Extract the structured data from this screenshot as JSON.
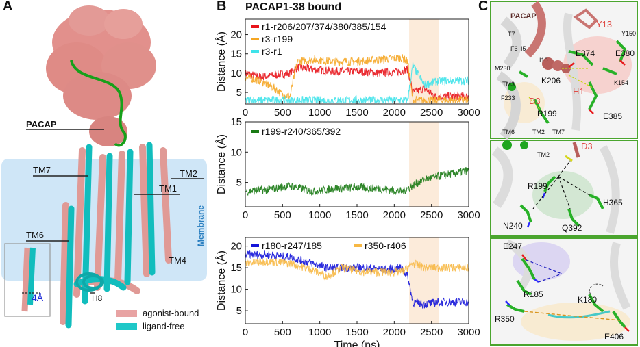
{
  "panel_letters": {
    "a": "A",
    "b": "B",
    "c": "C"
  },
  "panel_a": {
    "peptide_label": "PACAP",
    "membrane_label": "Membrane",
    "helix_labels": {
      "tm7": "TM7",
      "tm2": "TM2",
      "tm1": "TM1",
      "tm6": "TM6",
      "tm4": "TM4",
      "h8": "H8"
    },
    "shift_label": "4Å",
    "legend": [
      {
        "label": "agonist-bound",
        "color": "#e8a3a3"
      },
      {
        "label": "ligand-free",
        "color": "#1fc8c8"
      }
    ]
  },
  "panel_b_title": "PACAP1-38 bound",
  "chart_data": [
    {
      "type": "line",
      "title": "PACAP1-38 bound",
      "xlabel": "",
      "ylabel": "Distance (Å)",
      "xlim": [
        0,
        3000
      ],
      "ylim": [
        2,
        24
      ],
      "xticks": [
        "0",
        "500",
        "1000",
        "1500",
        "2000",
        "2500",
        "3000"
      ],
      "yticks": [
        "5",
        "10",
        "15",
        "20"
      ],
      "highlight_span": [
        2200,
        2600
      ],
      "series": [
        {
          "name": "r1-r206/207/374/380/385/154",
          "color": "#e8141b",
          "x": [
            0,
            200,
            400,
            600,
            700,
            900,
            1200,
            1500,
            1800,
            2100,
            2180,
            2250,
            2400,
            2550,
            2700,
            3000
          ],
          "values": [
            10,
            9,
            9.5,
            10,
            11.5,
            11,
            10.5,
            10.5,
            10,
            10.5,
            11,
            5,
            6,
            4,
            4,
            4
          ]
        },
        {
          "name": "r3-r199",
          "color": "#f5a623",
          "x": [
            0,
            200,
            400,
            500,
            600,
            700,
            900,
            1200,
            1500,
            1800,
            2100,
            2180,
            2250,
            2400,
            2600,
            3000
          ],
          "values": [
            9,
            8,
            6,
            4.5,
            4,
            13,
            13.5,
            13,
            13,
            13.5,
            14,
            13,
            3,
            3,
            3,
            3
          ]
        },
        {
          "name": "r3-r1",
          "color": "#3fe3ea",
          "x": [
            0,
            500,
            1000,
            1500,
            2000,
            2180,
            2250,
            2400,
            2600,
            3000
          ],
          "values": [
            3,
            3,
            3,
            3,
            3,
            3,
            12,
            7,
            8,
            8
          ]
        }
      ]
    },
    {
      "type": "line",
      "xlabel": "",
      "ylabel": "Distance (Å)",
      "xlim": [
        0,
        3000
      ],
      "ylim": [
        1,
        15
      ],
      "xticks": [
        "0",
        "500",
        "1000",
        "1500",
        "2000",
        "2500",
        "3000"
      ],
      "yticks": [
        "5",
        "10",
        "15"
      ],
      "highlight_span": [
        2200,
        2600
      ],
      "series": [
        {
          "name": "r199-r240/365/392",
          "color": "#1a7a14",
          "x": [
            0,
            300,
            600,
            900,
            1200,
            1500,
            1800,
            2100,
            2250,
            2400,
            2600,
            2800,
            3000
          ],
          "values": [
            3.5,
            3.8,
            4.5,
            3.5,
            4,
            4.2,
            4,
            3.5,
            4.5,
            5.5,
            6,
            6.5,
            7
          ]
        }
      ]
    },
    {
      "type": "line",
      "xlabel": "Time (ns)",
      "ylabel": "Distance (Å)",
      "xlim": [
        0,
        3000
      ],
      "ylim": [
        2,
        22
      ],
      "xticks": [
        "0",
        "500",
        "1000",
        "1500",
        "2000",
        "2500",
        "3000"
      ],
      "yticks": [
        "5",
        "10",
        "15",
        "20"
      ],
      "highlight_span": [
        2200,
        2600
      ],
      "series": [
        {
          "name": "r180-r247/185",
          "color": "#1414d9",
          "x": [
            0,
            300,
            600,
            900,
            1100,
            1300,
            1600,
            1900,
            2100,
            2180,
            2250,
            2400,
            2600,
            3000
          ],
          "values": [
            18,
            18,
            17.5,
            16,
            15,
            15,
            15,
            14.5,
            15,
            13,
            7,
            6.5,
            7,
            7
          ]
        },
        {
          "name": "r350-r406",
          "color": "#f7b844",
          "x": [
            0,
            300,
            600,
            900,
            1100,
            1300,
            1600,
            1900,
            2100,
            2250,
            2400,
            2600,
            3000
          ],
          "values": [
            16,
            16.5,
            16,
            14.5,
            13,
            15,
            14,
            14,
            14,
            16,
            15,
            15,
            15
          ]
        }
      ]
    }
  ],
  "panel_c": {
    "top": {
      "pacap": "PACAP",
      "y13": "Y13",
      "y150": "Y150",
      "t7": "T7",
      "f6": "F6",
      "i5": "I5",
      "i10": "I10",
      "e374": "E374",
      "e380": "E380",
      "m230": "M230",
      "tm3": "TM3",
      "k206": "K206",
      "k154": "K154",
      "h1": "H1",
      "d3": "D3",
      "f233": "F233",
      "r199": "R199",
      "e385": "E385",
      "tm6": "TM6",
      "tm2": "TM2",
      "tm7": "TM7"
    },
    "middle": {
      "d3": "D3",
      "tm2": "TM2",
      "r199": "R199",
      "h365": "H365",
      "n240": "N240",
      "q392": "Q392"
    },
    "bottom": {
      "e247": "E247",
      "r185": "R185",
      "k180": "K180",
      "r350": "R350",
      "e406": "E406"
    }
  }
}
